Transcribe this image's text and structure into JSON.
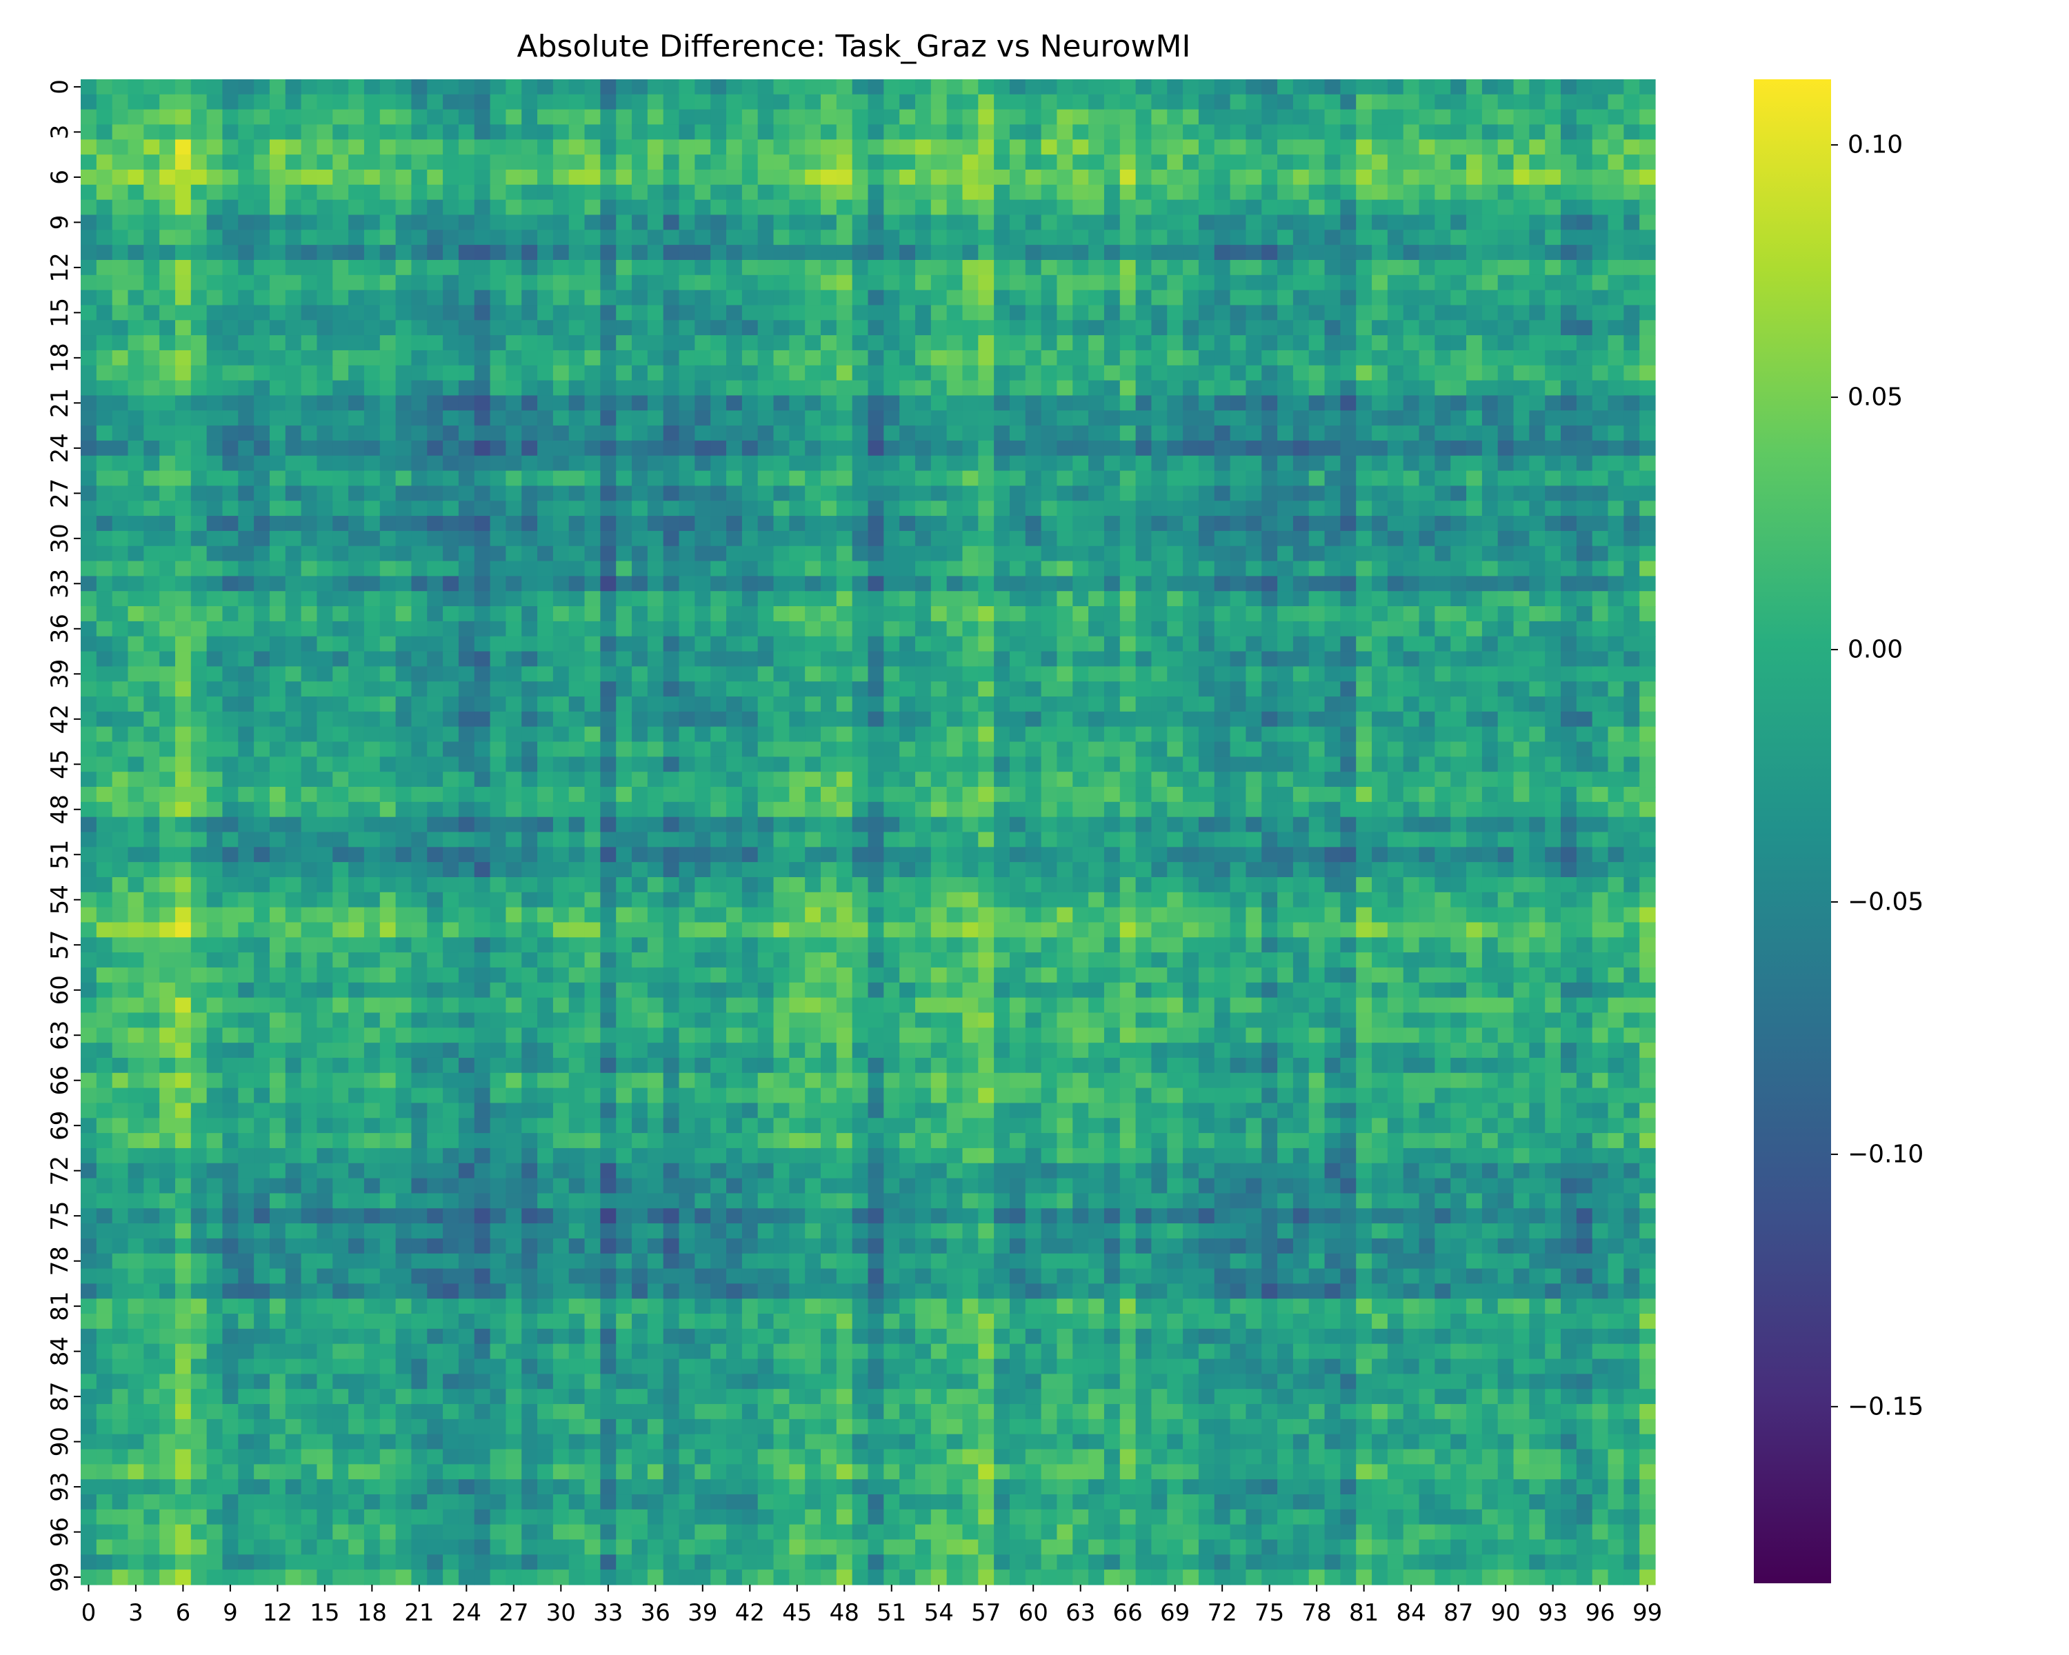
{
  "chart_data": {
    "type": "heatmap",
    "title": "Absolute Difference: Task_Graz vs NeurowMI",
    "xlabel": "",
    "ylabel": "",
    "rows": 100,
    "cols": 100,
    "x_tick_labels": [
      "0",
      "3",
      "6",
      "9",
      "12",
      "15",
      "18",
      "21",
      "24",
      "27",
      "30",
      "33",
      "36",
      "39",
      "42",
      "45",
      "48",
      "51",
      "54",
      "57",
      "60",
      "63",
      "66",
      "69",
      "72",
      "75",
      "78",
      "81",
      "84",
      "87",
      "90",
      "93",
      "96",
      "99"
    ],
    "y_tick_labels": [
      "0",
      "3",
      "6",
      "9",
      "12",
      "15",
      "18",
      "21",
      "24",
      "27",
      "30",
      "33",
      "36",
      "39",
      "42",
      "45",
      "48",
      "51",
      "54",
      "57",
      "60",
      "63",
      "66",
      "69",
      "72",
      "75",
      "78",
      "81",
      "84",
      "87",
      "90",
      "93",
      "96",
      "99"
    ],
    "colormap": "viridis",
    "vmin": -0.185,
    "vmax": 0.113,
    "colorbar_ticks": [
      0.1,
      0.05,
      0.0,
      -0.05,
      -0.1,
      -0.15
    ],
    "colorbar_tick_labels": [
      "0.10",
      "0.05",
      "0.00",
      "−0.05",
      "−0.10",
      "−0.15"
    ],
    "row_effects": [
      0.0,
      0.01,
      0.03,
      0.02,
      0.05,
      0.04,
      0.06,
      0.03,
      0.02,
      -0.01,
      0.0,
      -0.03,
      0.02,
      0.02,
      0.01,
      0.0,
      -0.01,
      0.01,
      0.02,
      0.02,
      0.01,
      -0.03,
      -0.02,
      -0.02,
      -0.04,
      -0.01,
      0.01,
      -0.02,
      0.0,
      -0.03,
      -0.02,
      -0.01,
      0.01,
      -0.03,
      0.01,
      0.02,
      0.01,
      0.0,
      -0.01,
      0.01,
      0.0,
      0.0,
      -0.01,
      0.01,
      0.01,
      0.0,
      0.02,
      0.03,
      0.02,
      -0.02,
      0.0,
      -0.03,
      -0.01,
      0.01,
      0.02,
      0.04,
      0.05,
      0.02,
      0.02,
      0.02,
      0.01,
      0.03,
      0.02,
      0.03,
      0.01,
      0.0,
      0.03,
      0.02,
      0.01,
      0.01,
      0.02,
      0.0,
      -0.02,
      -0.02,
      -0.01,
      -0.04,
      -0.01,
      -0.03,
      -0.01,
      -0.02,
      -0.03,
      0.02,
      0.02,
      0.0,
      0.01,
      0.0,
      0.0,
      0.01,
      0.02,
      0.01,
      0.0,
      0.02,
      0.03,
      0.0,
      0.0,
      0.01,
      0.02,
      0.02,
      0.0,
      0.03
    ],
    "col_effects": [
      0.0,
      0.01,
      0.02,
      0.02,
      0.02,
      0.03,
      0.05,
      0.02,
      0.0,
      -0.01,
      -0.01,
      -0.01,
      0.01,
      0.0,
      0.0,
      0.0,
      0.0,
      0.0,
      0.0,
      0.01,
      0.0,
      -0.02,
      -0.02,
      -0.02,
      -0.03,
      -0.04,
      -0.01,
      0.0,
      -0.02,
      -0.01,
      0.0,
      0.0,
      0.01,
      -0.04,
      0.0,
      -0.01,
      0.0,
      -0.03,
      -0.01,
      -0.01,
      -0.01,
      -0.01,
      -0.01,
      0.0,
      0.01,
      0.02,
      0.02,
      0.02,
      0.03,
      0.0,
      -0.03,
      0.0,
      0.0,
      0.01,
      0.02,
      0.02,
      0.03,
      0.04,
      0.0,
      0.0,
      0.0,
      0.01,
      0.02,
      0.01,
      0.01,
      0.0,
      0.03,
      0.0,
      0.0,
      0.01,
      0.0,
      -0.01,
      -0.02,
      -0.01,
      -0.01,
      -0.03,
      -0.01,
      -0.01,
      0.0,
      -0.02,
      -0.03,
      0.02,
      0.01,
      0.0,
      0.0,
      0.0,
      0.0,
      0.0,
      0.01,
      0.0,
      0.0,
      0.01,
      0.0,
      0.0,
      -0.02,
      -0.02,
      0.0,
      0.01,
      0.0,
      0.03
    ]
  }
}
